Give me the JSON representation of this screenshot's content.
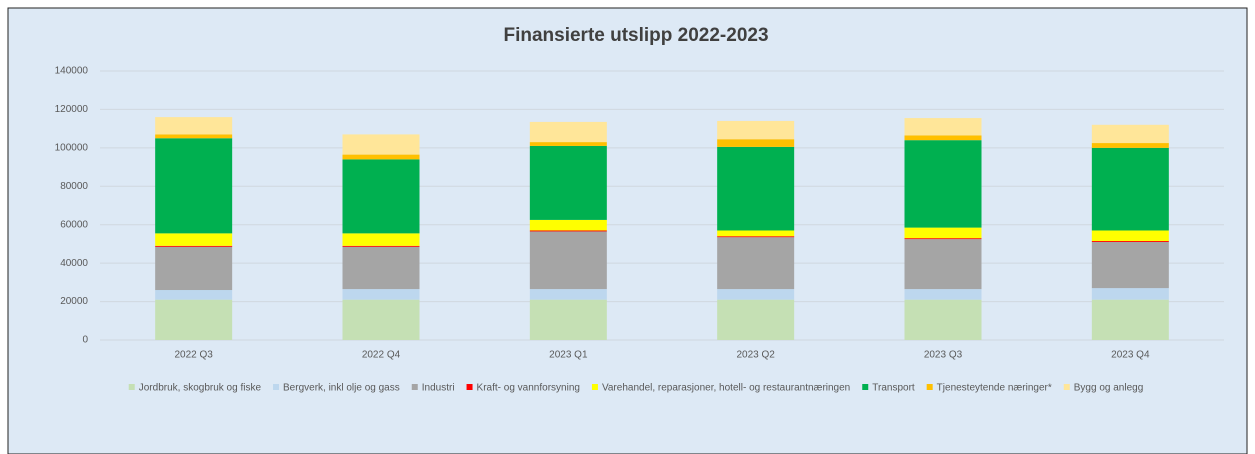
{
  "chart_data": {
    "type": "stacked_bar",
    "title": "Finansierte utslipp 2022-2023",
    "categories": [
      "2022 Q3",
      "2022 Q4",
      "2023 Q1",
      "2023 Q2",
      "2023 Q3",
      "2023 Q4"
    ],
    "series": [
      {
        "name": "Jordbruk, skogbruk og fiske",
        "color": "#c5e0b4",
        "values": [
          21000,
          21000,
          21000,
          21000,
          21000,
          21000
        ]
      },
      {
        "name": "Bergverk, inkl olje og gass",
        "color": "#bdd7ee",
        "values": [
          5000,
          5500,
          5500,
          5500,
          5500,
          6000
        ]
      },
      {
        "name": "Industri",
        "color": "#a5a5a5",
        "values": [
          22500,
          22000,
          30000,
          27000,
          26000,
          24000
        ]
      },
      {
        "name": "Kraft- og vannforsyning",
        "color": "#ff0000",
        "values": [
          500,
          500,
          500,
          500,
          500,
          500
        ]
      },
      {
        "name": "Varehandel, reparasjoner, hotell- og restaurantnæringen",
        "color": "#ffff00",
        "values": [
          6500,
          6500,
          5500,
          3000,
          5500,
          5500
        ]
      },
      {
        "name": "Transport",
        "color": "#00b050",
        "values": [
          49500,
          38500,
          38500,
          43500,
          45500,
          43000
        ]
      },
      {
        "name": "Tjenesteytende næringer*",
        "color": "#ffc000",
        "values": [
          2000,
          2500,
          2000,
          4000,
          2500,
          2500
        ]
      },
      {
        "name": "Bygg og anlegg",
        "color": "#ffe699",
        "values": [
          9000,
          10500,
          10500,
          9500,
          9000,
          9500
        ]
      }
    ],
    "ylim": [
      0,
      140000
    ],
    "yticks": [
      0,
      20000,
      40000,
      60000,
      80000,
      100000,
      120000,
      140000
    ],
    "grid": true,
    "legend": "bottom"
  }
}
